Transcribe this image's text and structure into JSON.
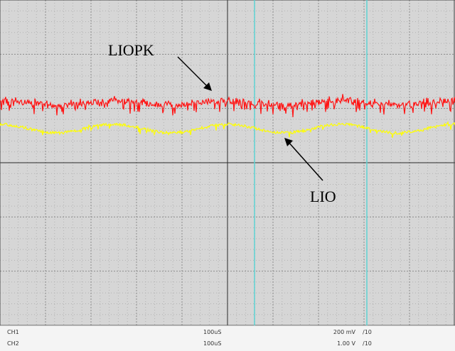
{
  "scope": {
    "grid_divisions_x": 10,
    "grid_divisions_y": 6,
    "background_color": "#d6d6d6",
    "grid_color": "#9a9a9a",
    "cursor_color": "#5fd3d3",
    "traces": [
      {
        "channel": "CH1",
        "color": "#ff1414",
        "annotation": "LIOPK"
      },
      {
        "channel": "CH2",
        "color": "#ffff00",
        "annotation": "LIO"
      }
    ]
  },
  "status": {
    "channels": [
      {
        "name": "CH1",
        "timebase": "100uS",
        "volts": "200 mV",
        "probe": "/10"
      },
      {
        "name": "CH2",
        "timebase": "100uS",
        "volts": "1.00 V",
        "probe": "/10"
      }
    ]
  }
}
